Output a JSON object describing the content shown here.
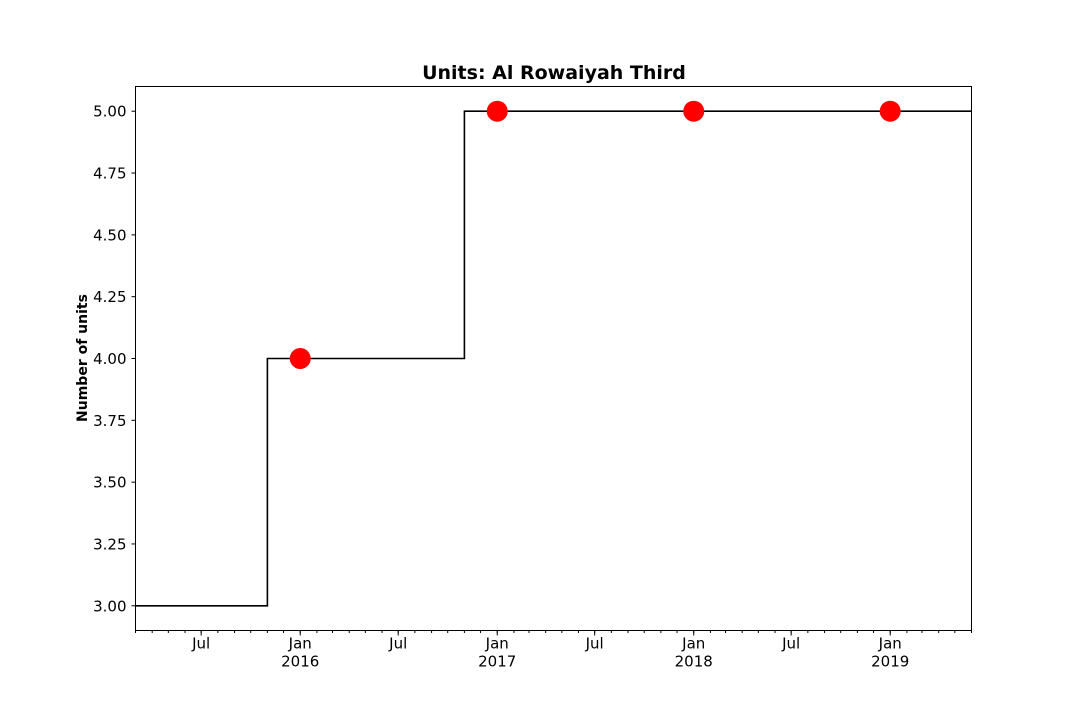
{
  "chart_data": {
    "type": "line",
    "title": "Units: Al Rowaiyah Third",
    "xlabel": "",
    "ylabel": "Number of units",
    "xlim": [
      "2015-03-01",
      "2019-06-01"
    ],
    "ylim": [
      2.9,
      5.1
    ],
    "y_ticks": [
      "3.00",
      "3.25",
      "3.50",
      "3.75",
      "4.00",
      "4.25",
      "4.50",
      "4.75",
      "5.00"
    ],
    "x_ticks": [
      {
        "date": "2015-07-01",
        "label": "Jul",
        "sublabel": ""
      },
      {
        "date": "2016-01-01",
        "label": "Jan",
        "sublabel": "2016"
      },
      {
        "date": "2016-07-01",
        "label": "Jul",
        "sublabel": ""
      },
      {
        "date": "2017-01-01",
        "label": "Jan",
        "sublabel": "2017"
      },
      {
        "date": "2017-07-01",
        "label": "Jul",
        "sublabel": ""
      },
      {
        "date": "2018-01-01",
        "label": "Jan",
        "sublabel": "2018"
      },
      {
        "date": "2018-07-01",
        "label": "Jul",
        "sublabel": ""
      },
      {
        "date": "2019-01-01",
        "label": "Jan",
        "sublabel": "2019"
      }
    ],
    "grid": false,
    "series": [
      {
        "style": "step",
        "color": "#000000",
        "x": [
          "2015-03-01",
          "2015-11-01",
          "2016-11-01",
          "2019-06-01"
        ],
        "y": [
          3,
          4,
          5,
          5
        ]
      },
      {
        "style": "markers",
        "color": "#ff0000",
        "x": [
          "2016-01-01",
          "2017-01-01",
          "2018-01-01",
          "2019-01-01"
        ],
        "y": [
          4,
          5,
          5,
          5
        ]
      }
    ]
  }
}
